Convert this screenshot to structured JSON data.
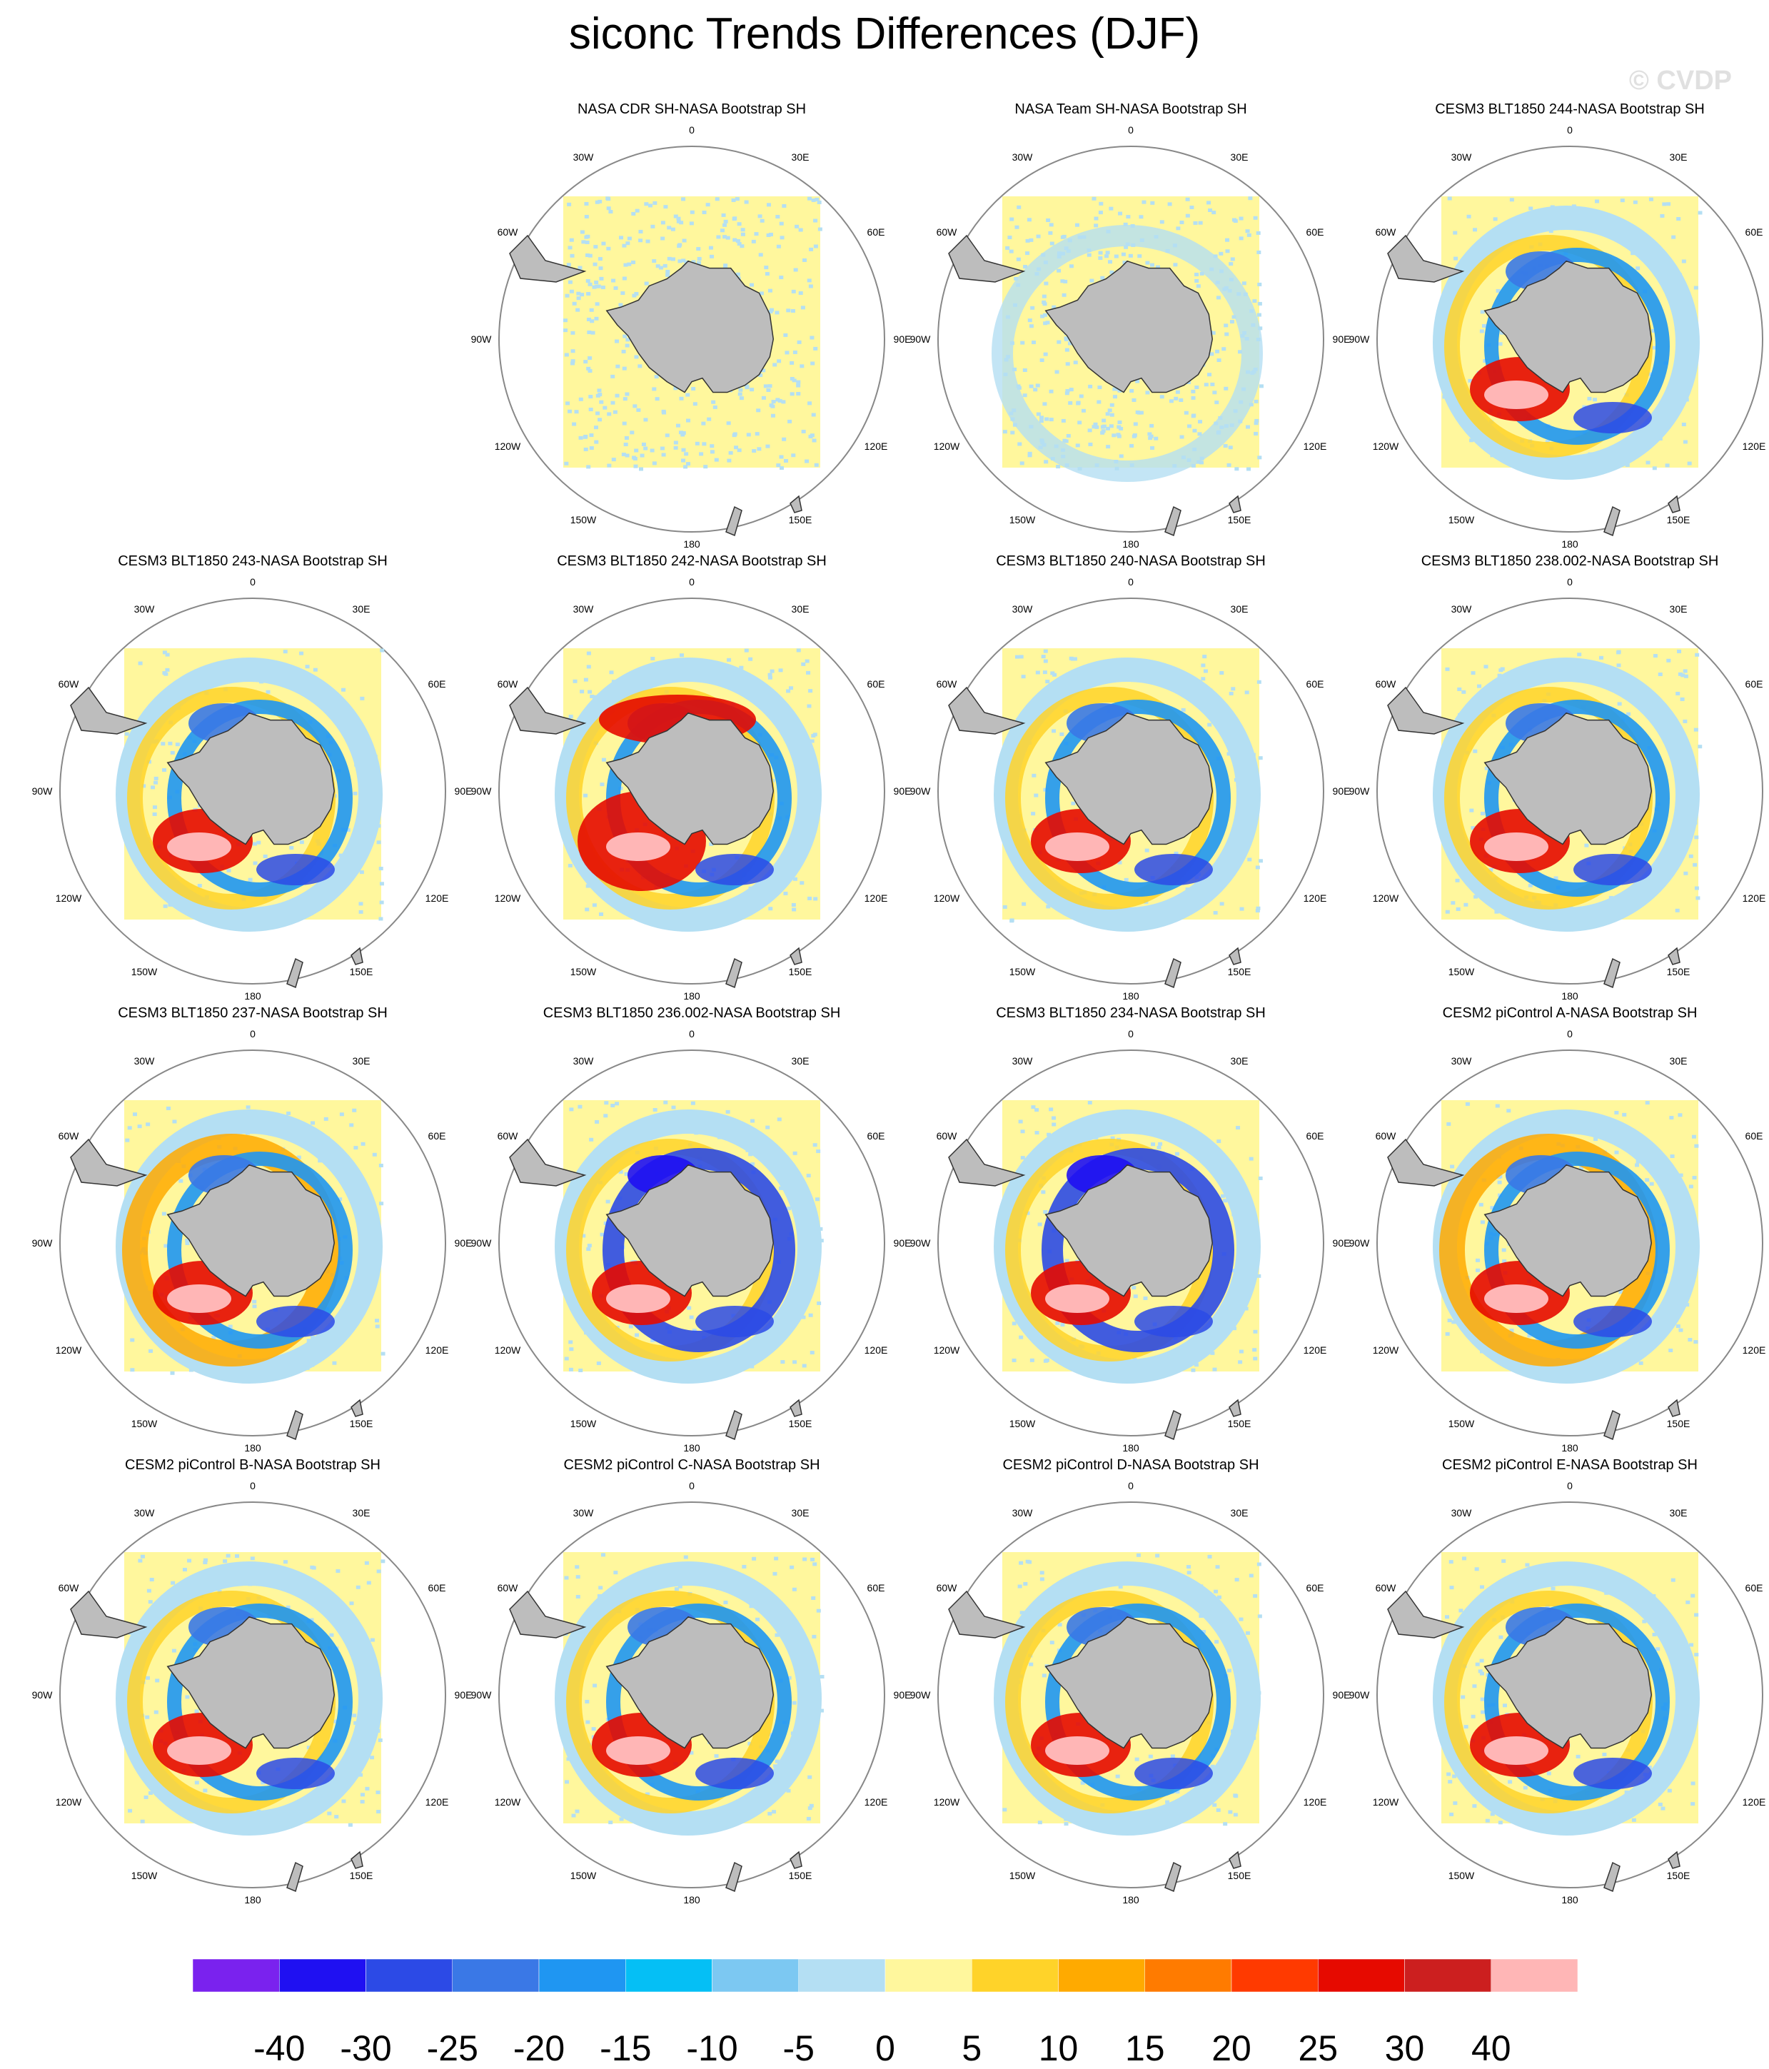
{
  "figure": {
    "title": "siconc Trends Differences (DJF)",
    "watermark": "© CVDP"
  },
  "map_labels": {
    "lon": [
      "0",
      "30E",
      "60E",
      "90E",
      "120E",
      "150E",
      "180",
      "150W",
      "120W",
      "90W",
      "60W",
      "30W"
    ]
  },
  "chart_data": {
    "type": "polar-stereographic-map-panel",
    "variable": "siconc",
    "season": "DJF",
    "units": "trend difference",
    "colorbar": {
      "levels": [
        "-40",
        "-30",
        "-25",
        "-20",
        "-15",
        "-10",
        "-5",
        "0",
        "5",
        "10",
        "15",
        "20",
        "25",
        "30",
        "40"
      ],
      "colors": [
        "#7a22ee",
        "#1f10f2",
        "#2c4ae6",
        "#3a78e6",
        "#1f96f2",
        "#05bff5",
        "#7cc8f2",
        "#b4dff3",
        "#fff79d",
        "#ffd329",
        "#ffaa00",
        "#ff7b00",
        "#ff3a00",
        "#e60a00",
        "#cc1f1f",
        "#ffb6b6"
      ]
    },
    "panels": [
      {
        "title": "NASA CDR SH-NASA Bootstrap SH",
        "blank": 0,
        "pattern": "near-zero"
      },
      {
        "title": "NASA Team SH-NASA Bootstrap SH",
        "blank": 0,
        "pattern": "near-zero-ring"
      },
      {
        "title": "CESM3 BLT1850 244-NASA Bootstrap SH",
        "blank": 0,
        "pattern": "model"
      },
      {
        "title": "CESM3 BLT1850 243-NASA Bootstrap SH",
        "blank": 0,
        "pattern": "model"
      },
      {
        "title": "CESM3 BLT1850 242-NASA Bootstrap SH",
        "blank": 0,
        "pattern": "model-strong"
      },
      {
        "title": "CESM3 BLT1850 240-NASA Bootstrap SH",
        "blank": 0,
        "pattern": "model"
      },
      {
        "title": "CESM3 BLT1850 238.002-NASA Bootstrap SH",
        "blank": 0,
        "pattern": "model"
      },
      {
        "title": "CESM3 BLT1850 237-NASA Bootstrap SH",
        "blank": 0,
        "pattern": "model-warm"
      },
      {
        "title": "CESM3 BLT1850 236.002-NASA Bootstrap SH",
        "blank": 0,
        "pattern": "model-cool"
      },
      {
        "title": "CESM3 BLT1850 234-NASA Bootstrap SH",
        "blank": 0,
        "pattern": "model-cool"
      },
      {
        "title": "CESM2 piControl A-NASA Bootstrap SH",
        "blank": 0,
        "pattern": "model-warm"
      },
      {
        "title": "CESM2 piControl B-NASA Bootstrap SH",
        "blank": 0,
        "pattern": "model"
      },
      {
        "title": "CESM2 piControl C-NASA Bootstrap SH",
        "blank": 0,
        "pattern": "model"
      },
      {
        "title": "CESM2 piControl D-NASA Bootstrap SH",
        "blank": 0,
        "pattern": "model"
      },
      {
        "title": "CESM2 piControl E-NASA Bootstrap SH",
        "blank": 0,
        "pattern": "model"
      }
    ]
  }
}
